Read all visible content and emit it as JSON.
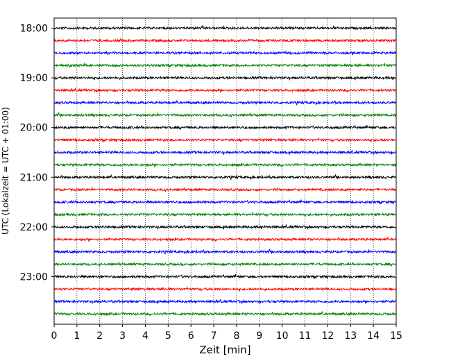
{
  "chart_data": {
    "type": "line",
    "subtype": "helicorder-seismogram",
    "title": "",
    "xlabel": "Zeit  [min]",
    "ylabel": "UTC (Lokalzeit = UTC + 01:00)",
    "xlim": [
      0,
      15
    ],
    "x_ticks": [
      "0",
      "1",
      "2",
      "3",
      "4",
      "5",
      "6",
      "7",
      "8",
      "9",
      "10",
      "11",
      "12",
      "13",
      "14",
      "15"
    ],
    "y_tick_labels": [
      "18:00",
      "19:00",
      "20:00",
      "21:00",
      "22:00",
      "23:00"
    ],
    "grid": "vertical dotted lines at each minute",
    "trace_interval_minutes": 15,
    "traces": [
      {
        "start": "18:00",
        "color": "#000000"
      },
      {
        "start": "18:15",
        "color": "#ff0000"
      },
      {
        "start": "18:30",
        "color": "#0000ff"
      },
      {
        "start": "18:45",
        "color": "#008000"
      },
      {
        "start": "19:00",
        "color": "#000000"
      },
      {
        "start": "19:15",
        "color": "#ff0000"
      },
      {
        "start": "19:30",
        "color": "#0000ff"
      },
      {
        "start": "19:45",
        "color": "#008000"
      },
      {
        "start": "20:00",
        "color": "#000000"
      },
      {
        "start": "20:15",
        "color": "#ff0000"
      },
      {
        "start": "20:30",
        "color": "#0000ff"
      },
      {
        "start": "20:45",
        "color": "#008000"
      },
      {
        "start": "21:00",
        "color": "#000000"
      },
      {
        "start": "21:15",
        "color": "#ff0000"
      },
      {
        "start": "21:30",
        "color": "#0000ff"
      },
      {
        "start": "21:45",
        "color": "#008000"
      },
      {
        "start": "22:00",
        "color": "#000000"
      },
      {
        "start": "22:15",
        "color": "#ff0000"
      },
      {
        "start": "22:30",
        "color": "#0000ff"
      },
      {
        "start": "22:45",
        "color": "#008000"
      },
      {
        "start": "23:00",
        "color": "#000000"
      },
      {
        "start": "23:15",
        "color": "#ff0000"
      },
      {
        "start": "23:30",
        "color": "#0000ff"
      },
      {
        "start": "23:45",
        "color": "#008000"
      }
    ]
  }
}
